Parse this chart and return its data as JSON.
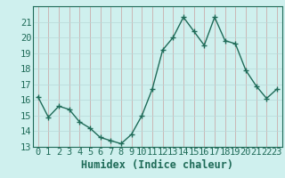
{
  "x": [
    0,
    1,
    2,
    3,
    4,
    5,
    6,
    7,
    8,
    9,
    10,
    11,
    12,
    13,
    14,
    15,
    16,
    17,
    18,
    19,
    20,
    21,
    22,
    23
  ],
  "y": [
    16.2,
    14.9,
    15.6,
    15.4,
    14.6,
    14.2,
    13.6,
    13.4,
    13.2,
    13.8,
    15.0,
    16.7,
    19.2,
    20.0,
    21.3,
    20.4,
    19.5,
    21.3,
    19.8,
    19.6,
    17.9,
    16.9,
    16.1,
    16.7
  ],
  "xlabel": "Humidex (Indice chaleur)",
  "ylim": [
    13,
    22
  ],
  "xlim": [
    -0.5,
    23.5
  ],
  "yticks": [
    13,
    14,
    15,
    16,
    17,
    18,
    19,
    20,
    21
  ],
  "xticks": [
    0,
    1,
    2,
    3,
    4,
    5,
    6,
    7,
    8,
    9,
    10,
    11,
    12,
    13,
    14,
    15,
    16,
    17,
    18,
    19,
    20,
    21,
    22,
    23
  ],
  "line_color": "#1f6b58",
  "bg_color": "#cff0ee",
  "grid_color_v": "#c8a0a0",
  "grid_color_h": "#b8d8d8",
  "tick_fontsize": 7.5,
  "xlabel_fontsize": 8.5,
  "linewidth": 1.0,
  "markersize": 4
}
